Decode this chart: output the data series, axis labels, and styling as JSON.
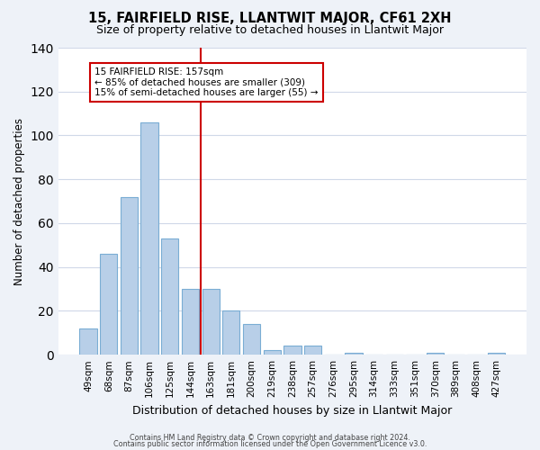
{
  "title": "15, FAIRFIELD RISE, LLANTWIT MAJOR, CF61 2XH",
  "subtitle": "Size of property relative to detached houses in Llantwit Major",
  "xlabel": "Distribution of detached houses by size in Llantwit Major",
  "ylabel": "Number of detached properties",
  "bar_color": "#b8cfe8",
  "bar_edge_color": "#7aadd4",
  "categories": [
    "49sqm",
    "68sqm",
    "87sqm",
    "106sqm",
    "125sqm",
    "144sqm",
    "163sqm",
    "181sqm",
    "200sqm",
    "219sqm",
    "238sqm",
    "257sqm",
    "276sqm",
    "295sqm",
    "314sqm",
    "333sqm",
    "351sqm",
    "370sqm",
    "389sqm",
    "408sqm",
    "427sqm"
  ],
  "values": [
    12,
    46,
    72,
    106,
    53,
    30,
    30,
    20,
    14,
    2,
    4,
    4,
    0,
    1,
    0,
    0,
    0,
    1,
    0,
    0,
    1
  ],
  "vline_x": 5.5,
  "vline_color": "#cc0000",
  "annotation_title": "15 FAIRFIELD RISE: 157sqm",
  "annotation_line1": "← 85% of detached houses are smaller (309)",
  "annotation_line2": "15% of semi-detached houses are larger (55) →",
  "ylim": [
    0,
    140
  ],
  "yticks": [
    0,
    20,
    40,
    60,
    80,
    100,
    120,
    140
  ],
  "footer1": "Contains HM Land Registry data © Crown copyright and database right 2024.",
  "footer2": "Contains public sector information licensed under the Open Government Licence v3.0.",
  "bg_color": "#eef2f8",
  "plot_bg_color": "#ffffff",
  "grid_color": "#d0d8e8"
}
